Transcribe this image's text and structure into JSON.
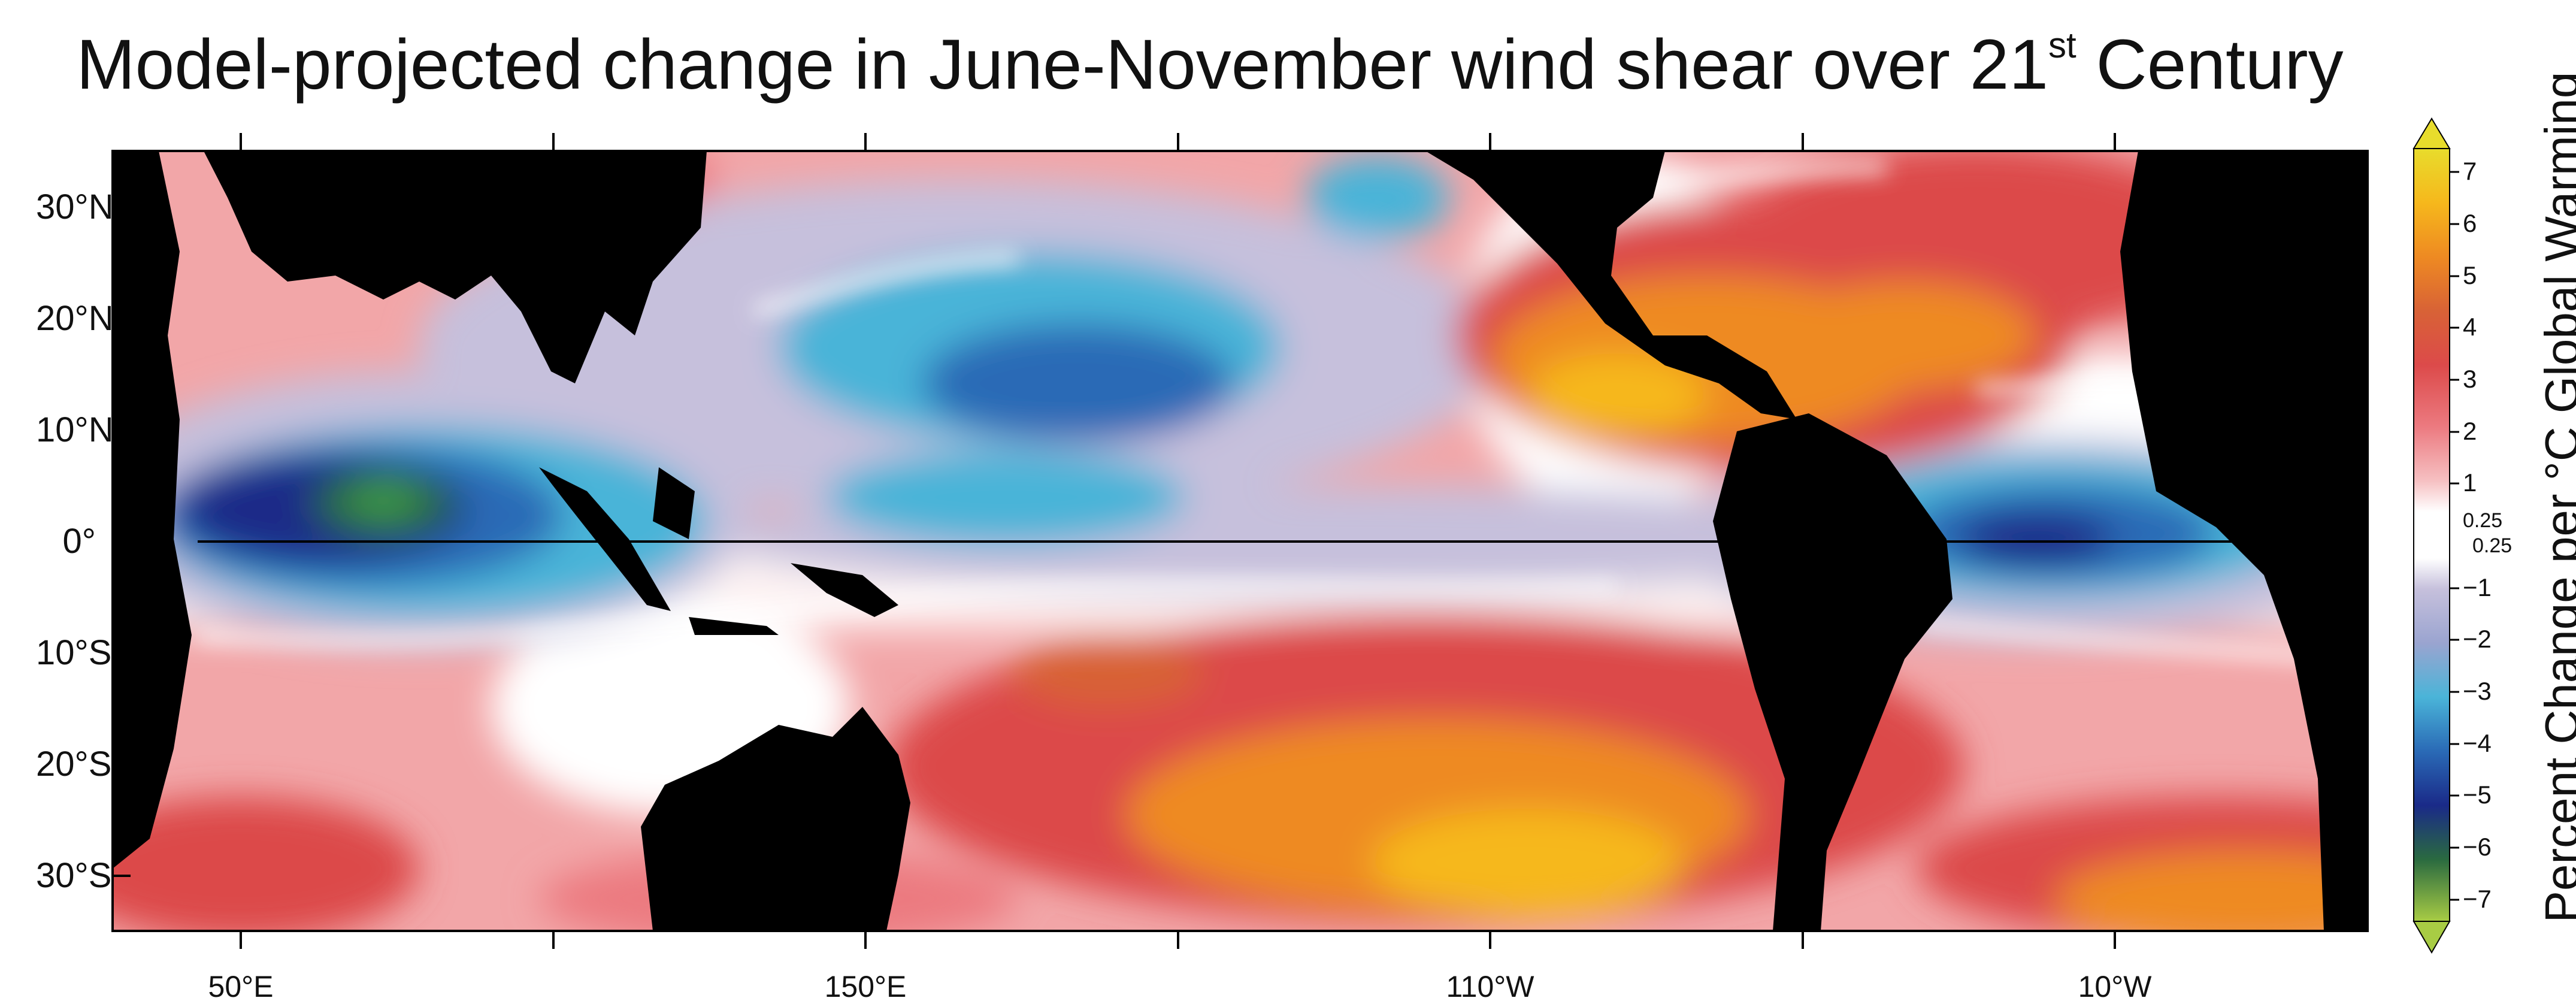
{
  "map": {
    "title_main": "Model-projected change in June-November wind shear over 21",
    "title_sup": "st",
    "title_end": " Century",
    "lat_labels": [
      "30°N",
      "20°N",
      "10°N",
      "0°",
      "10°S",
      "20°S",
      "30°S"
    ],
    "lon_labels": [
      "50°E",
      "150°E",
      "110°W",
      "10°W"
    ],
    "colorbar": {
      "title": "Percent Change per °C Global Warming",
      "positive_labels": [
        "7",
        "6",
        "5",
        "4",
        "3",
        "2",
        "1"
      ],
      "threshold_upper": "0.25",
      "threshold_lower": "0.25",
      "negative_labels": [
        "−1",
        "−2",
        "−3",
        "−4",
        "−5",
        "−6",
        "−7"
      ],
      "colors": {
        "p7": "#e8dc2c",
        "p6": "#f6b81c",
        "p5": "#ee8a22",
        "p4": "#d86236",
        "p3": "#dc4a4a",
        "p2": "#ec7a80",
        "p1": "#f6c0c2",
        "zero": "#ffffff",
        "n1": "#c6c0dc",
        "n2": "#9aa4d0",
        "n3": "#4ab4d8",
        "n4": "#2a6ab6",
        "n5": "#1a2a88",
        "n6": "#2a6a40",
        "n7": "#3c9a48",
        "n8": "#a8cc44"
      }
    },
    "land_color": "#000000"
  }
}
